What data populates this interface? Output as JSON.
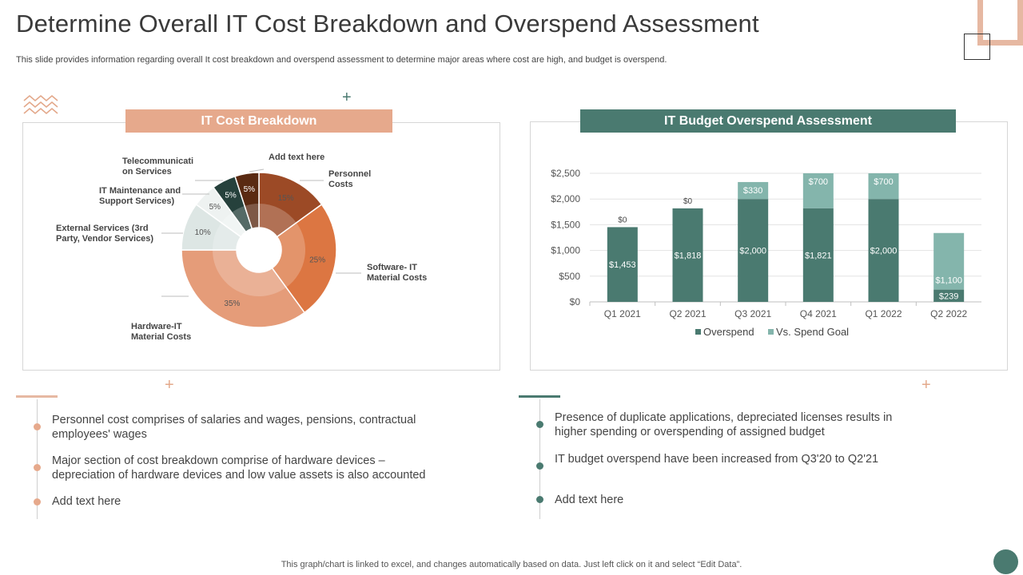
{
  "header": {
    "title": "Determine Overall IT Cost Breakdown and Overspend Assessment",
    "subtitle": "This slide provides information regarding overall It cost breakdown and overspend assessment to determine major areas where cost are high, and budget is overspend."
  },
  "colors": {
    "peach": "#e6a98c",
    "teal": "#4a7a70",
    "teal_light": "#84b5ac"
  },
  "left_panel": {
    "heading": "IT Cost Breakdown",
    "bullets": [
      "Personnel cost comprises of salaries and wages, pensions, contractual employees' wages",
      "Major section of cost breakdown comprise of hardware devices – depreciation of hardware devices and low value assets is also accounted",
      "Add text here"
    ]
  },
  "right_panel": {
    "heading": "IT Budget Overspend Assessment",
    "bullets": [
      "Presence of duplicate applications, depreciated licenses results in higher spending or overspending of assigned budget",
      "IT budget overspend have been increased from Q3'20 to Q2'21",
      "Add text here"
    ]
  },
  "footer": {
    "note": "This graph/chart is linked to excel,  and changes automatically based on data. Just left click on it and select “Edit Data”."
  },
  "chart_data": [
    {
      "type": "pie",
      "title": "IT Cost Breakdown",
      "slices": [
        {
          "label": "Personnel Costs",
          "label_lines": [
            "Personnel",
            "Costs"
          ],
          "value": 15,
          "value_label": "15%",
          "color": "#9c4a26"
        },
        {
          "label": "Software- IT Material Costs",
          "label_lines": [
            "Software- IT",
            "Material Costs"
          ],
          "value": 25,
          "value_label": "25%",
          "color": "#dc7642"
        },
        {
          "label": "Hardware-IT Material Costs",
          "label_lines": [
            "Hardware-IT",
            "Material Costs"
          ],
          "value": 35,
          "value_label": "35%",
          "color": "#e59c79"
        },
        {
          "label": "External Services (3rd Party, Vendor Services)",
          "label_lines": [
            "External Services (3rd",
            "Party, Vendor Services)"
          ],
          "value": 10,
          "value_label": "10%",
          "color": "#dde6e4"
        },
        {
          "label": "IT Maintenance and Support Services)",
          "label_lines": [
            "IT Maintenance and",
            "Support Services)"
          ],
          "value": 5,
          "value_label": "5%",
          "color": "#eef2f1"
        },
        {
          "label": "Telecommunication Services",
          "label_lines": [
            "Telecommunicati",
            "on Services"
          ],
          "value": 5,
          "value_label": "5%",
          "color": "#26413c"
        },
        {
          "label": "Add text here",
          "label_lines": [
            "Add text here"
          ],
          "value": 5,
          "value_label": "5%",
          "color": "#5a2a12"
        }
      ]
    },
    {
      "type": "bar",
      "stacked": true,
      "title": "IT Budget Overspend Assessment",
      "categories": [
        "Q1 2021",
        "Q2 2021",
        "Q3 2021",
        "Q4 2021",
        "Q1 2022",
        "Q2 2022"
      ],
      "series": [
        {
          "name": "Overspend",
          "values": [
            1453,
            1818,
            2000,
            1821,
            2000,
            239
          ],
          "labels": [
            "$1,453",
            "$1,818",
            "$2,000",
            "$1,821",
            "$2,000",
            "$239"
          ],
          "color": "#4a7a70"
        },
        {
          "name": "Vs. Spend Goal",
          "values": [
            0,
            0,
            330,
            700,
            700,
            1100
          ],
          "labels": [
            "$0",
            "$0",
            "$330",
            "$700",
            "$700",
            "$1,100"
          ],
          "color": "#84b5ac"
        }
      ],
      "ylim": [
        0,
        2500
      ],
      "yticks": [
        0,
        500,
        1000,
        1500,
        2000,
        2500
      ],
      "ytick_labels": [
        "$0",
        "$500",
        "$1,000",
        "$1,500",
        "$2,000",
        "$2,500"
      ],
      "legend": "bottom",
      "grid": true
    }
  ]
}
